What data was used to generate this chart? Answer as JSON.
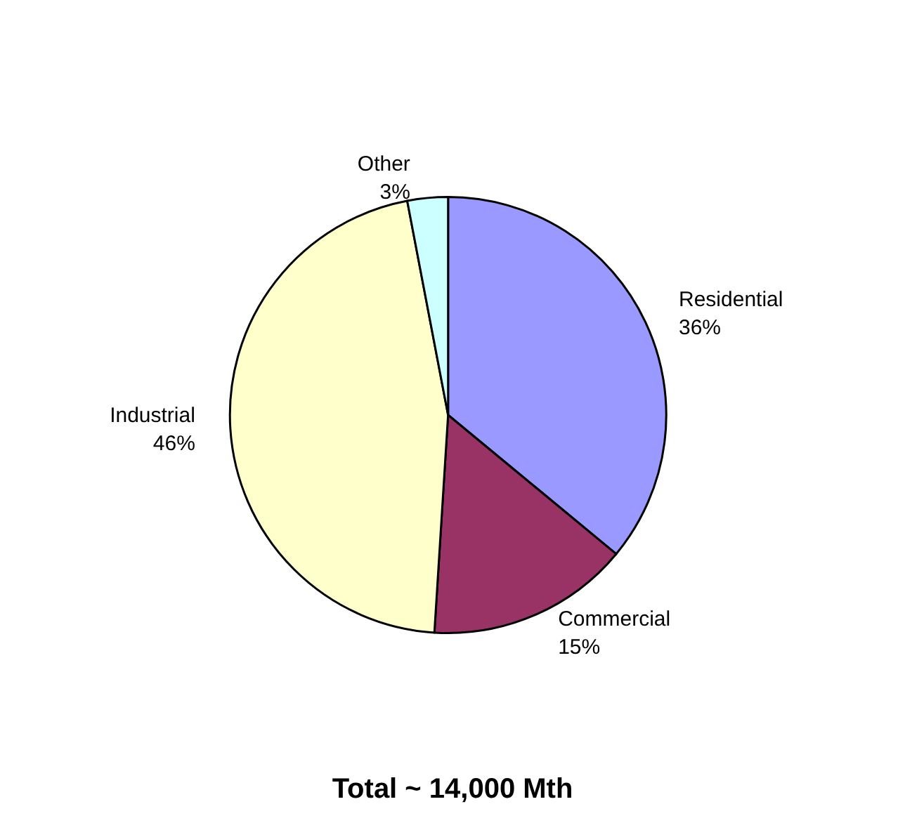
{
  "chart_data": {
    "type": "pie",
    "title": "Total ~ 14,000 Mth",
    "categories": [
      "Residential",
      "Commercial",
      "Industrial",
      "Other"
    ],
    "values": [
      36,
      15,
      46,
      3
    ],
    "value_labels": [
      "36%",
      "15%",
      "46%",
      "3%"
    ],
    "colors": [
      "#9999ff",
      "#993366",
      "#ffffcc",
      "#ccffff"
    ],
    "legend": false
  }
}
